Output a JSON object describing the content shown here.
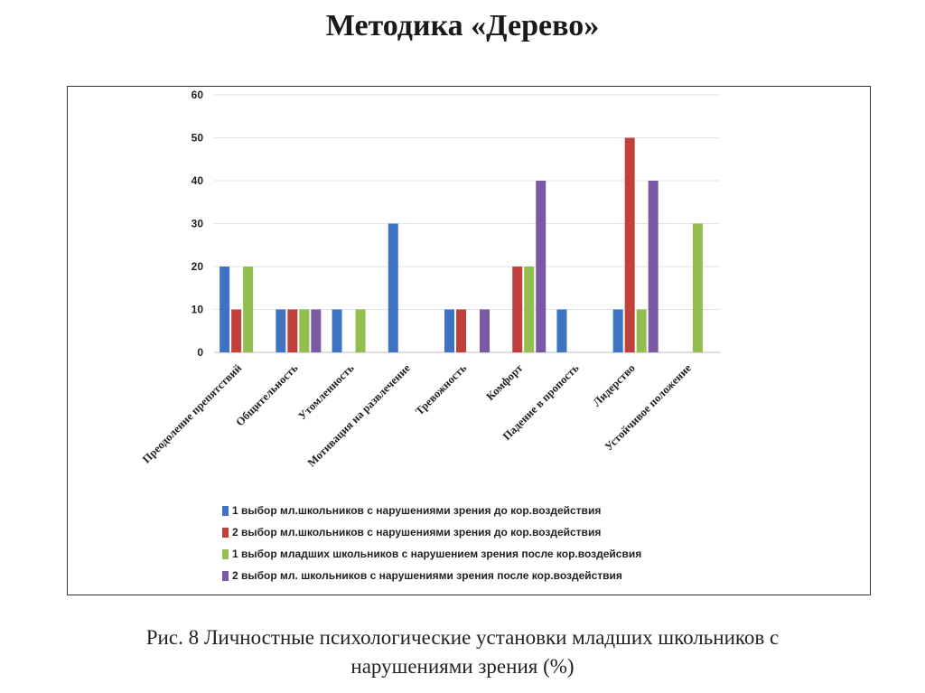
{
  "header": {
    "title": "Методика «Дерево»"
  },
  "chart_data": {
    "type": "bar",
    "categories": [
      "Преодоление препятствий",
      "Общительность",
      "Утомленность",
      "Мотивация на развлечение",
      "Тревожность",
      "Комфорт",
      "Падение в пропость",
      "Лидерство",
      "Устойчивое положение"
    ],
    "series": [
      {
        "name": "1 выбор мл.школьников с нарушениями зрения до кор.воздействия",
        "color": "#3e73c4",
        "values": [
          20,
          10,
          10,
          30,
          10,
          0,
          10,
          10,
          0
        ]
      },
      {
        "name": "2 выбор мл.школьников с нарушениями зрения до кор.воздействия",
        "color": "#c0403c",
        "values": [
          10,
          10,
          0,
          0,
          10,
          20,
          0,
          50,
          0
        ]
      },
      {
        "name": "1 выбор младших школьников с нарушением зрения  после кор.воздейсвия",
        "color": "#92be4f",
        "values": [
          20,
          10,
          10,
          0,
          0,
          20,
          0,
          10,
          30
        ]
      },
      {
        "name": "2 выбор  мл. школьников с нарушениями зрения после кор.воздействия",
        "color": "#7b58a4",
        "values": [
          0,
          10,
          0,
          0,
          10,
          40,
          0,
          40,
          0
        ]
      }
    ],
    "yticks": [
      0,
      10,
      20,
      30,
      40,
      50,
      60
    ],
    "ylim": [
      0,
      60
    ],
    "grid": true,
    "legend_position": "bottom"
  },
  "caption": {
    "line1": "Рис. 8 Личностные психологические установки младших школьников с",
    "line2": "нарушениями зрения  (%)"
  }
}
